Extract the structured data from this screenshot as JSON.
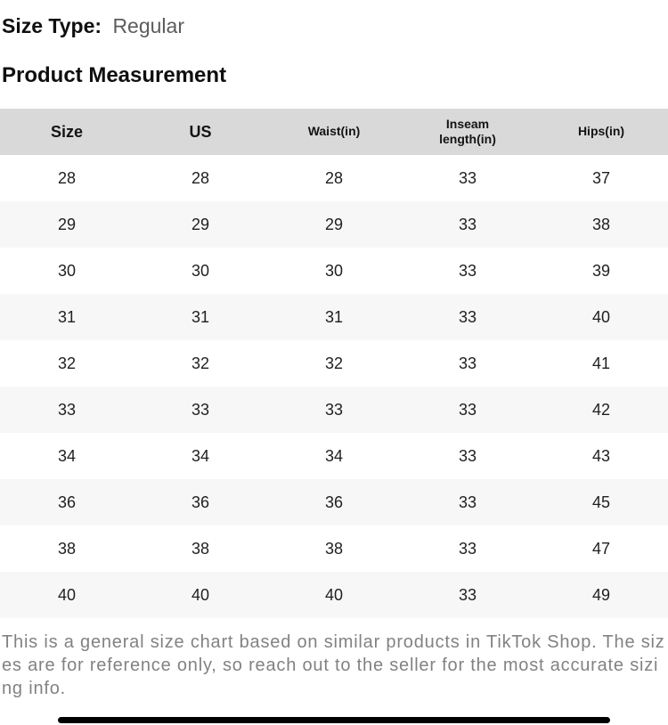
{
  "size_type": {
    "label": "Size Type:",
    "value": "Regular"
  },
  "section_title": "Product Measurement",
  "table": {
    "columns": [
      {
        "label": "Size",
        "style": "large"
      },
      {
        "label": "US",
        "style": "large"
      },
      {
        "label": "Waist(in)",
        "style": "small"
      },
      {
        "label": "Inseam length(in)",
        "style": "small"
      },
      {
        "label": "Hips(in)",
        "style": "small"
      }
    ],
    "rows": [
      [
        "28",
        "28",
        "28",
        "33",
        "37"
      ],
      [
        "29",
        "29",
        "29",
        "33",
        "38"
      ],
      [
        "30",
        "30",
        "30",
        "33",
        "39"
      ],
      [
        "31",
        "31",
        "31",
        "33",
        "40"
      ],
      [
        "32",
        "32",
        "32",
        "33",
        "41"
      ],
      [
        "33",
        "33",
        "33",
        "33",
        "42"
      ],
      [
        "34",
        "34",
        "34",
        "33",
        "43"
      ],
      [
        "36",
        "36",
        "36",
        "33",
        "45"
      ],
      [
        "38",
        "38",
        "38",
        "33",
        "47"
      ],
      [
        "40",
        "40",
        "40",
        "33",
        "49"
      ]
    ]
  },
  "disclaimer": "This is a general size chart based on similar products in TikTok Shop. The sizes are for reference only, so reach out to the seller for the most accurate sizing info.",
  "colors": {
    "header_bg": "#d9d9d9",
    "row_alt_bg": "#f7f7f7",
    "title_text": "#0f0f0f",
    "value_text": "#5c5c5c",
    "disclaimer_text": "#828282",
    "home_indicator": "#000000"
  }
}
